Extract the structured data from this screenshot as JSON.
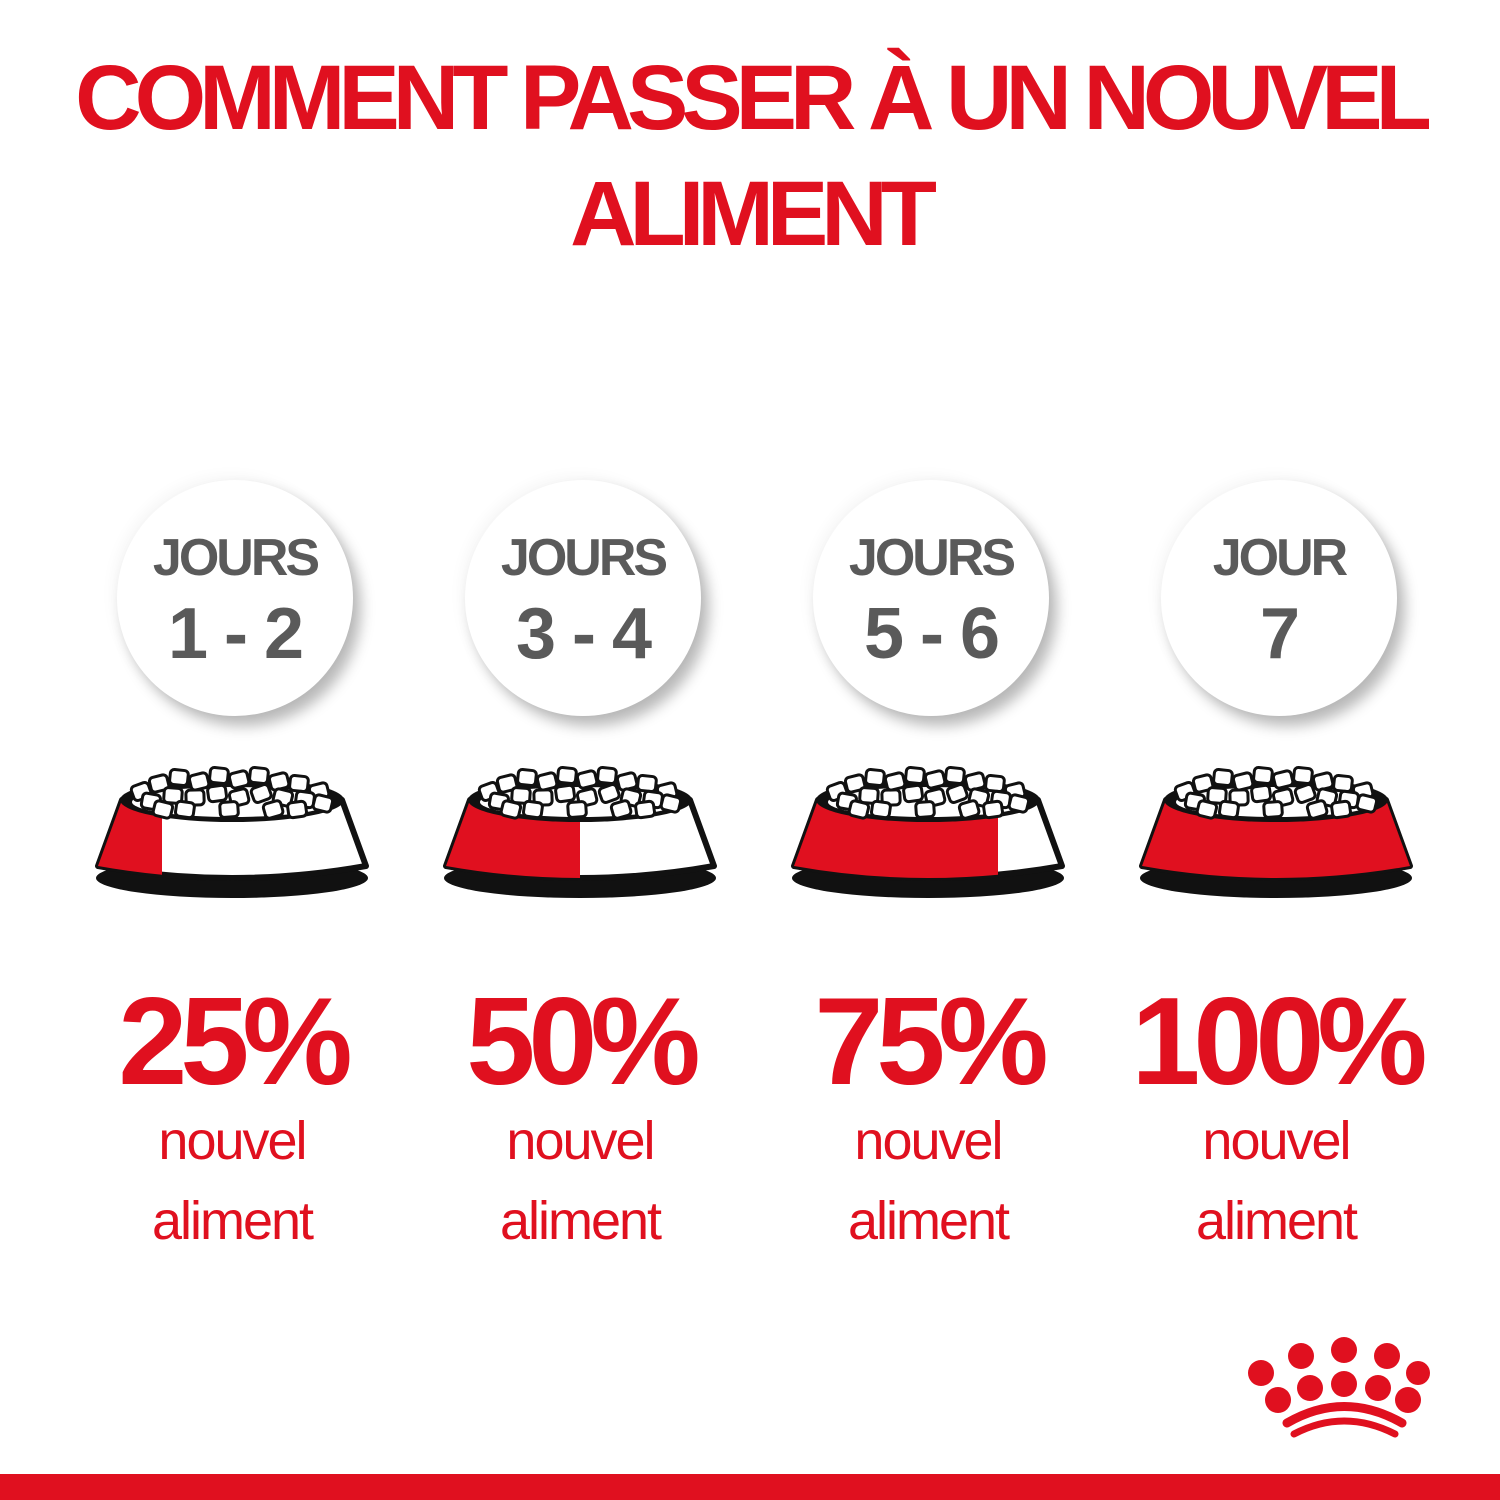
{
  "title": {
    "line1": "COMMENT PASSER À UN NOUVEL",
    "line2": "ALIMENT"
  },
  "colors": {
    "brand_red": "#e0101f",
    "gray_text": "#5a5a5a",
    "outline": "#111111"
  },
  "steps": [
    {
      "label": "JOURS",
      "days": "1 - 2",
      "percent": "25%",
      "new_food_fraction": 0.25,
      "line1": "nouvel",
      "line2": "aliment"
    },
    {
      "label": "JOURS",
      "days": "3 - 4",
      "percent": "50%",
      "new_food_fraction": 0.5,
      "line1": "nouvel",
      "line2": "aliment"
    },
    {
      "label": "JOURS",
      "days": "5 - 6",
      "percent": "75%",
      "new_food_fraction": 0.75,
      "line1": "nouvel",
      "line2": "aliment"
    },
    {
      "label": "JOUR",
      "days": "7",
      "percent": "100%",
      "new_food_fraction": 1.0,
      "line1": "nouvel",
      "line2": "aliment"
    }
  ],
  "logo": {
    "name": "royal-canin-crown-logo",
    "text": "®"
  }
}
